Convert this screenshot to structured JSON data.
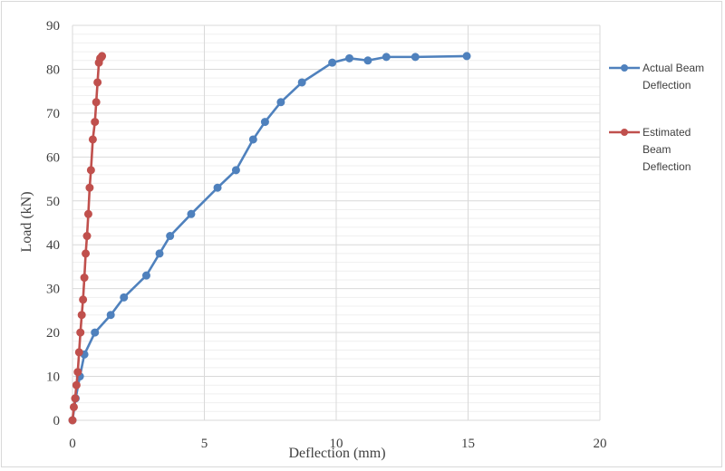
{
  "chart_data": {
    "type": "line",
    "title": "",
    "xlabel": "Deflection (mm)",
    "ylabel": "Load (kN)",
    "xlim": [
      0,
      20
    ],
    "ylim": [
      0,
      90
    ],
    "xticks": [
      "0",
      "5",
      "10",
      "15",
      "20"
    ],
    "yticks": [
      "0",
      "10",
      "20",
      "30",
      "40",
      "50",
      "60",
      "70",
      "80",
      "90"
    ],
    "grid": true,
    "legend_position": "right",
    "series": [
      {
        "name": "Actual Beam Deflection",
        "legend_lines": [
          "Actual Beam",
          "Deflection"
        ],
        "color": "#4f81bd",
        "x": [
          0,
          0.12,
          0.28,
          0.45,
          0.85,
          1.45,
          1.95,
          2.8,
          3.3,
          3.7,
          4.5,
          5.5,
          6.2,
          6.85,
          7.3,
          7.9,
          8.7,
          9.85,
          10.5,
          11.2,
          11.9,
          13.0,
          14.95
        ],
        "y": [
          0,
          5,
          10,
          15,
          20,
          24,
          28,
          33,
          38,
          42,
          47,
          53,
          57,
          64,
          68,
          72.5,
          77,
          81.5,
          82.5,
          82,
          82.8,
          82.8,
          83
        ]
      },
      {
        "name": "Estimated Beam Deflection",
        "legend_lines": [
          "Estimated",
          "Beam",
          "Deflection"
        ],
        "color": "#c0504d",
        "x": [
          0,
          0.05,
          0.1,
          0.15,
          0.2,
          0.25,
          0.3,
          0.35,
          0.4,
          0.45,
          0.5,
          0.55,
          0.6,
          0.65,
          0.7,
          0.77,
          0.85,
          0.9,
          0.95,
          1.0,
          1.05,
          1.1,
          1.12
        ],
        "y": [
          0,
          3,
          5,
          8,
          11,
          15.5,
          20,
          24,
          27.5,
          32.5,
          38,
          42,
          47,
          53,
          57,
          64,
          68,
          72.5,
          77,
          81.5,
          82.5,
          82.8,
          83
        ]
      }
    ]
  }
}
